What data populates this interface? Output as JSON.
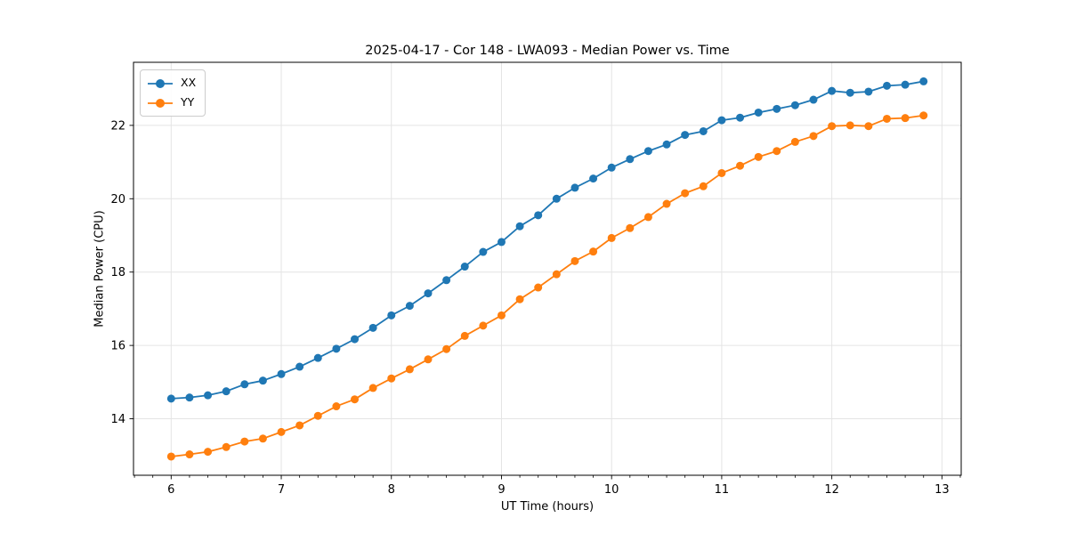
{
  "figure": {
    "title": "2025-04-17 - Cor 148 - LWA093 - Median Power vs. Time"
  },
  "colors": {
    "grid": "#e4e4e4",
    "spine": "#000000",
    "legend_border": "#cccccc",
    "series_blue": "#1f77b4",
    "series_orange": "#ff7f0e"
  },
  "chart_data": {
    "type": "line",
    "title": "2025-04-17 - Cor 148 - LWA093 - Median Power vs. Time",
    "xlabel": "UT Time (hours)",
    "ylabel": "Median Power (CPU)",
    "xlim": [
      5.658,
      13.175
    ],
    "ylim": [
      12.46,
      23.72
    ],
    "x_ticks": [
      6,
      7,
      8,
      9,
      10,
      11,
      12,
      13
    ],
    "y_ticks": [
      14,
      16,
      18,
      20,
      22
    ],
    "x_minor_tick_step": 0.166667,
    "grid": true,
    "legend_position": "upper-left",
    "marker": "circle",
    "x": [
      6.0,
      6.1667,
      6.3333,
      6.5,
      6.6667,
      6.8333,
      7.0,
      7.1667,
      7.3333,
      7.5,
      7.6667,
      7.8333,
      8.0,
      8.1667,
      8.3333,
      8.5,
      8.6667,
      8.8333,
      9.0,
      9.1667,
      9.3333,
      9.5,
      9.6667,
      9.8333,
      10.0,
      10.1667,
      10.3333,
      10.5,
      10.6667,
      10.8333,
      11.0,
      11.1667,
      11.3333,
      11.5,
      11.6667,
      11.8333,
      12.0,
      12.1667,
      12.3333,
      12.5,
      12.6667,
      12.8333
    ],
    "series": [
      {
        "name": "XX",
        "color": "#1f77b4",
        "values": [
          14.55,
          14.58,
          14.64,
          14.75,
          14.94,
          15.04,
          15.22,
          15.42,
          15.66,
          15.91,
          16.17,
          16.48,
          16.82,
          17.08,
          17.42,
          17.78,
          18.15,
          18.55,
          18.82,
          19.25,
          19.55,
          20.0,
          20.3,
          20.55,
          20.85,
          21.08,
          21.3,
          21.48,
          21.74,
          21.84,
          22.14,
          22.21,
          22.35,
          22.45,
          22.55,
          22.7,
          22.94,
          22.89,
          22.92,
          23.08,
          23.11,
          23.2
        ]
      },
      {
        "name": "YY",
        "color": "#ff7f0e",
        "values": [
          12.97,
          13.03,
          13.1,
          13.23,
          13.38,
          13.46,
          13.64,
          13.82,
          14.08,
          14.34,
          14.53,
          14.84,
          15.1,
          15.35,
          15.62,
          15.9,
          16.26,
          16.54,
          16.82,
          17.26,
          17.58,
          17.94,
          18.3,
          18.56,
          18.93,
          19.2,
          19.5,
          19.86,
          20.15,
          20.34,
          20.7,
          20.9,
          21.14,
          21.3,
          21.55,
          21.71,
          21.98,
          22.0,
          21.98,
          22.18,
          22.2,
          22.27
        ]
      }
    ]
  }
}
